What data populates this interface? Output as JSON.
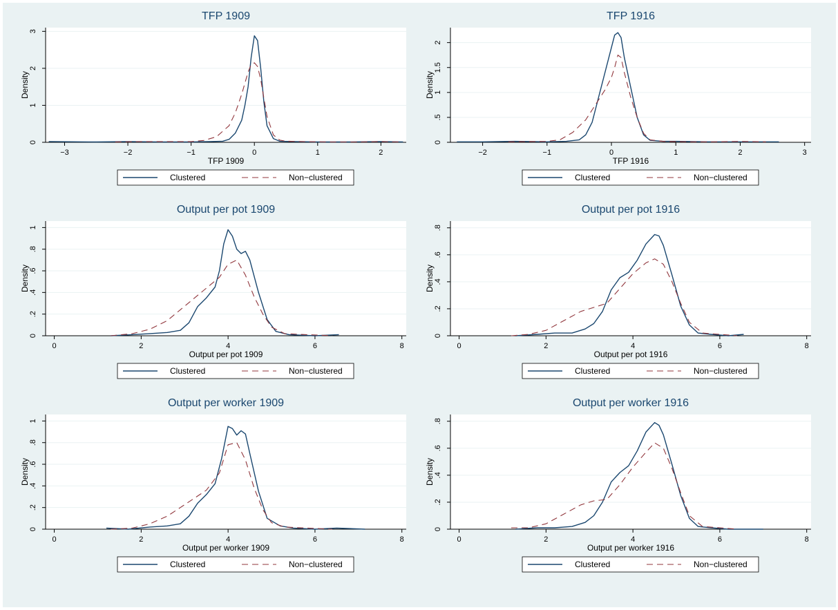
{
  "colors": {
    "panel_bg": "#eaf2f3",
    "title": "#1a476f",
    "clustered": "#1a476f",
    "non_clustered": "#90353b",
    "grid": "#eaf2f3"
  },
  "legend": {
    "clustered": "Clustered",
    "non_clustered": "Non−clustered"
  },
  "chart_data": [
    {
      "type": "line",
      "title": "TFP 1909",
      "xlabel": "TFP 1909",
      "ylabel": "Density",
      "xlim": [
        -3.3,
        2.4
      ],
      "ylim": [
        0,
        3.1
      ],
      "xticks": [
        -3,
        -2,
        -1,
        0,
        1,
        2
      ],
      "xtick_labels": [
        "−3",
        "−2",
        "−1",
        "0",
        "1",
        "2"
      ],
      "yticks": [
        0,
        1,
        2,
        3
      ],
      "ytick_labels": [
        "0",
        "1",
        "2",
        "3"
      ],
      "grid": true,
      "legend_position": "bottom",
      "series": [
        {
          "name": "Clustered",
          "x": [
            -3.25,
            -2.5,
            -2.0,
            -1.5,
            -1.0,
            -0.7,
            -0.5,
            -0.4,
            -0.3,
            -0.2,
            -0.15,
            -0.1,
            -0.05,
            0.0,
            0.05,
            0.1,
            0.15,
            0.2,
            0.3,
            0.4,
            0.6,
            1.0,
            1.5,
            2.0,
            2.35
          ],
          "values": [
            0.02,
            0.01,
            0.02,
            0.01,
            0.01,
            0.02,
            0.03,
            0.08,
            0.25,
            0.6,
            1.0,
            1.5,
            2.3,
            2.88,
            2.75,
            2.0,
            1.1,
            0.45,
            0.1,
            0.03,
            0.02,
            0.01,
            0.01,
            0.02,
            0.01
          ]
        },
        {
          "name": "Non−clustered",
          "x": [
            -2.2,
            -1.8,
            -1.4,
            -1.0,
            -0.8,
            -0.6,
            -0.4,
            -0.3,
            -0.2,
            -0.1,
            -0.05,
            0.0,
            0.05,
            0.1,
            0.15,
            0.2,
            0.3,
            0.4,
            0.5,
            0.8,
            1.2,
            1.6,
            2.0,
            2.3
          ],
          "values": [
            0.01,
            0.02,
            0.02,
            0.02,
            0.05,
            0.15,
            0.45,
            0.8,
            1.3,
            1.9,
            2.1,
            2.15,
            2.05,
            1.7,
            1.2,
            0.7,
            0.2,
            0.06,
            0.03,
            0.02,
            0.01,
            0.01,
            0.02,
            0.01
          ]
        }
      ]
    },
    {
      "type": "line",
      "title": "TFP 1916",
      "xlabel": "TFP 1916",
      "ylabel": "Density",
      "xlim": [
        -2.5,
        3.1
      ],
      "ylim": [
        0,
        2.3
      ],
      "xticks": [
        -2,
        -1,
        0,
        1,
        2,
        3
      ],
      "xtick_labels": [
        "−2",
        "−1",
        "0",
        "1",
        "2",
        "3"
      ],
      "yticks": [
        0,
        0.5,
        1,
        1.5,
        2
      ],
      "ytick_labels": [
        "0",
        ".5",
        "1",
        "1.5",
        "2"
      ],
      "grid": true,
      "legend_position": "bottom",
      "series": [
        {
          "name": "Clustered",
          "x": [
            -2.4,
            -2.0,
            -1.5,
            -1.0,
            -0.7,
            -0.5,
            -0.4,
            -0.3,
            -0.2,
            -0.1,
            0.0,
            0.05,
            0.1,
            0.15,
            0.2,
            0.3,
            0.4,
            0.5,
            0.6,
            0.8,
            1.0,
            1.5,
            2.0,
            2.6
          ],
          "values": [
            0.01,
            0.01,
            0.02,
            0.01,
            0.02,
            0.05,
            0.15,
            0.4,
            0.9,
            1.4,
            1.9,
            2.15,
            2.2,
            2.1,
            1.7,
            1.1,
            0.5,
            0.15,
            0.04,
            0.02,
            0.02,
            0.01,
            0.01,
            0.01
          ]
        },
        {
          "name": "Non−clustered",
          "x": [
            -1.6,
            -1.0,
            -0.8,
            -0.6,
            -0.4,
            -0.2,
            -0.1,
            0.0,
            0.05,
            0.1,
            0.15,
            0.2,
            0.3,
            0.4,
            0.5,
            0.6,
            0.8,
            1.2,
            1.6,
            2.0,
            2.4
          ],
          "values": [
            0.01,
            0.02,
            0.05,
            0.2,
            0.45,
            0.85,
            1.05,
            1.3,
            1.5,
            1.75,
            1.7,
            1.4,
            0.9,
            0.5,
            0.18,
            0.05,
            0.02,
            0.01,
            0.01,
            0.02,
            0.01
          ]
        }
      ]
    },
    {
      "type": "line",
      "title": "Output per pot 1909",
      "xlabel": "Output per pot 1909",
      "ylabel": "Density",
      "xlim": [
        -0.2,
        8.1
      ],
      "ylim": [
        0,
        1.06
      ],
      "xticks": [
        0,
        2,
        4,
        6,
        8
      ],
      "xtick_labels": [
        "0",
        "2",
        "4",
        "6",
        "8"
      ],
      "yticks": [
        0,
        0.2,
        0.4,
        0.6,
        0.8,
        1
      ],
      "ytick_labels": [
        "0",
        ".2",
        ".4",
        ".6",
        ".8",
        "1"
      ],
      "grid": true,
      "legend_position": "bottom",
      "series": [
        {
          "name": "Clustered",
          "x": [
            1.3,
            1.8,
            2.2,
            2.6,
            2.9,
            3.1,
            3.3,
            3.5,
            3.7,
            3.8,
            3.9,
            4.0,
            4.1,
            4.2,
            4.3,
            4.4,
            4.5,
            4.7,
            4.9,
            5.1,
            5.4,
            6.0,
            6.55
          ],
          "values": [
            0.0,
            0.01,
            0.02,
            0.03,
            0.05,
            0.12,
            0.27,
            0.35,
            0.45,
            0.6,
            0.85,
            0.98,
            0.92,
            0.8,
            0.76,
            0.78,
            0.7,
            0.4,
            0.15,
            0.04,
            0.01,
            0.0,
            0.01
          ]
        },
        {
          "name": "Non−clustered",
          "x": [
            1.3,
            1.8,
            2.2,
            2.6,
            2.9,
            3.2,
            3.5,
            3.8,
            4.0,
            4.2,
            4.4,
            4.6,
            4.8,
            5.0,
            5.3,
            5.8,
            6.4
          ],
          "values": [
            0.0,
            0.02,
            0.06,
            0.14,
            0.24,
            0.34,
            0.44,
            0.54,
            0.66,
            0.7,
            0.56,
            0.36,
            0.2,
            0.08,
            0.02,
            0.01,
            0.0
          ]
        }
      ]
    },
    {
      "type": "line",
      "title": "Output per pot 1916",
      "xlabel": "Output per pot 1916",
      "ylabel": "Density",
      "xlim": [
        -0.2,
        8.1
      ],
      "ylim": [
        0,
        0.85
      ],
      "xticks": [
        0,
        2,
        4,
        6,
        8
      ],
      "xtick_labels": [
        "0",
        "2",
        "4",
        "6",
        "8"
      ],
      "yticks": [
        0,
        0.2,
        0.4,
        0.6,
        0.8
      ],
      "ytick_labels": [
        "0",
        ".2",
        ".4",
        ".6",
        ".8"
      ],
      "grid": true,
      "legend_position": "bottom",
      "series": [
        {
          "name": "Clustered",
          "x": [
            1.3,
            1.8,
            2.2,
            2.6,
            2.9,
            3.1,
            3.3,
            3.5,
            3.7,
            3.9,
            4.1,
            4.3,
            4.5,
            4.6,
            4.7,
            4.9,
            5.1,
            5.3,
            5.5,
            5.8,
            6.2,
            6.55
          ],
          "values": [
            0.0,
            0.01,
            0.02,
            0.02,
            0.05,
            0.09,
            0.18,
            0.34,
            0.43,
            0.47,
            0.56,
            0.68,
            0.75,
            0.74,
            0.67,
            0.45,
            0.22,
            0.08,
            0.02,
            0.01,
            0.0,
            0.01
          ]
        },
        {
          "name": "Non−clustered",
          "x": [
            1.2,
            1.6,
            2.0,
            2.4,
            2.8,
            3.1,
            3.4,
            3.7,
            4.0,
            4.3,
            4.5,
            4.7,
            4.9,
            5.1,
            5.3,
            5.6,
            6.0,
            6.4
          ],
          "values": [
            0.0,
            0.01,
            0.04,
            0.11,
            0.18,
            0.21,
            0.24,
            0.35,
            0.46,
            0.54,
            0.57,
            0.53,
            0.4,
            0.24,
            0.1,
            0.02,
            0.01,
            0.0
          ]
        }
      ]
    },
    {
      "type": "line",
      "title": "Output per worker 1909",
      "xlabel": "Output per worker 1909",
      "ylabel": "Density",
      "xlim": [
        -0.2,
        8.1
      ],
      "ylim": [
        0,
        1.06
      ],
      "xticks": [
        0,
        2,
        4,
        6,
        8
      ],
      "xtick_labels": [
        "0",
        "2",
        "4",
        "6",
        "8"
      ],
      "yticks": [
        0,
        0.2,
        0.4,
        0.6,
        0.8,
        1
      ],
      "ytick_labels": [
        "0",
        ".2",
        ".4",
        ".6",
        ".8",
        "1"
      ],
      "grid": true,
      "legend_position": "bottom",
      "series": [
        {
          "name": "Clustered",
          "x": [
            1.2,
            1.7,
            2.2,
            2.6,
            2.9,
            3.1,
            3.3,
            3.5,
            3.7,
            3.85,
            4.0,
            4.1,
            4.2,
            4.3,
            4.4,
            4.5,
            4.7,
            4.9,
            5.2,
            5.5,
            6.0,
            6.5,
            7.15
          ],
          "values": [
            0.01,
            0.0,
            0.02,
            0.03,
            0.05,
            0.12,
            0.24,
            0.32,
            0.42,
            0.65,
            0.95,
            0.93,
            0.87,
            0.91,
            0.88,
            0.7,
            0.35,
            0.1,
            0.03,
            0.01,
            0.0,
            0.01,
            0.0
          ]
        },
        {
          "name": "Non−clustered",
          "x": [
            1.3,
            1.8,
            2.2,
            2.6,
            2.9,
            3.2,
            3.5,
            3.8,
            4.0,
            4.2,
            4.4,
            4.6,
            4.8,
            5.0,
            5.3,
            5.8,
            6.4
          ],
          "values": [
            0.0,
            0.01,
            0.05,
            0.12,
            0.2,
            0.28,
            0.36,
            0.52,
            0.78,
            0.8,
            0.64,
            0.38,
            0.18,
            0.06,
            0.02,
            0.01,
            0.0
          ]
        }
      ]
    },
    {
      "type": "line",
      "title": "Output per worker 1916",
      "xlabel": "Output per worker 1916",
      "ylabel": "Density",
      "xlim": [
        -0.2,
        8.1
      ],
      "ylim": [
        0,
        0.85
      ],
      "xticks": [
        0,
        2,
        4,
        6,
        8
      ],
      "xtick_labels": [
        "0",
        "2",
        "4",
        "6",
        "8"
      ],
      "yticks": [
        0,
        0.2,
        0.4,
        0.6,
        0.8
      ],
      "ytick_labels": [
        "0",
        ".2",
        ".4",
        ".6",
        ".8"
      ],
      "grid": true,
      "legend_position": "bottom",
      "series": [
        {
          "name": "Clustered",
          "x": [
            1.3,
            1.8,
            2.2,
            2.6,
            2.9,
            3.1,
            3.3,
            3.5,
            3.7,
            3.9,
            4.1,
            4.3,
            4.5,
            4.6,
            4.7,
            4.9,
            5.1,
            5.3,
            5.5,
            5.8,
            6.2,
            7.0
          ],
          "values": [
            0.0,
            0.01,
            0.01,
            0.02,
            0.05,
            0.1,
            0.2,
            0.35,
            0.42,
            0.47,
            0.58,
            0.72,
            0.79,
            0.77,
            0.7,
            0.48,
            0.25,
            0.08,
            0.02,
            0.01,
            0.0,
            0.0
          ]
        },
        {
          "name": "Non−clustered",
          "x": [
            1.2,
            1.6,
            2.0,
            2.4,
            2.8,
            3.1,
            3.4,
            3.7,
            4.0,
            4.3,
            4.5,
            4.7,
            4.9,
            5.1,
            5.3,
            5.6,
            6.0,
            6.4
          ],
          "values": [
            0.01,
            0.01,
            0.04,
            0.11,
            0.18,
            0.21,
            0.22,
            0.33,
            0.46,
            0.57,
            0.64,
            0.6,
            0.45,
            0.27,
            0.1,
            0.02,
            0.01,
            0.0
          ]
        }
      ]
    }
  ]
}
